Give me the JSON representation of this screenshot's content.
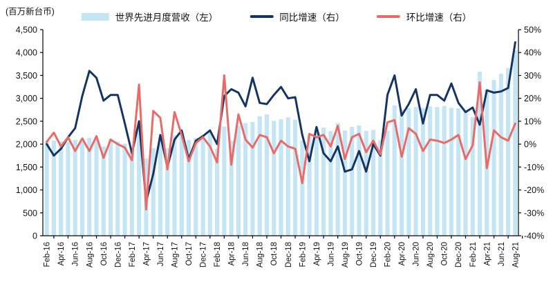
{
  "header": {
    "unit_label": "(百万新台币)"
  },
  "legend": [
    {
      "label": "世界先进月度营收（左）",
      "type": "bar",
      "color": "#c4e6f4"
    },
    {
      "label": "同比增速（右）",
      "type": "line",
      "color": "#143461"
    },
    {
      "label": "环比增速（右）",
      "type": "line",
      "color": "#e96a66"
    }
  ],
  "chart_data": {
    "type": "bar+line combo, dual axis",
    "grid": false,
    "legend_position": "top",
    "categories": [
      "Feb-16",
      "Mar-16",
      "Apr-16",
      "May-16",
      "Jun-16",
      "Jul-16",
      "Aug-16",
      "Sep-16",
      "Oct-16",
      "Nov-16",
      "Dec-16",
      "Jan-17",
      "Feb-17",
      "Mar-17",
      "Apr-17",
      "May-17",
      "Jun-17",
      "Jul-17",
      "Aug-17",
      "Sep-17",
      "Oct-17",
      "Nov-17",
      "Dec-17",
      "Jan-18",
      "Feb-18",
      "Mar-18",
      "Apr-18",
      "May-18",
      "Jun-18",
      "Jul-18",
      "Aug-18",
      "Sep-18",
      "Oct-18",
      "Nov-18",
      "Dec-18",
      "Jan-19",
      "Feb-19",
      "Mar-19",
      "Apr-19",
      "May-19",
      "Jun-19",
      "Jul-19",
      "Aug-19",
      "Sep-19",
      "Oct-19",
      "Nov-19",
      "Dec-19",
      "Jan-20",
      "Feb-20",
      "Mar-20",
      "Apr-20",
      "May-20",
      "Jun-20",
      "Jul-20",
      "Aug-20",
      "Sep-20",
      "Oct-20",
      "Nov-20",
      "Dec-20",
      "Jan-21",
      "Feb-21",
      "Mar-21",
      "Apr-21",
      "May-21",
      "Jun-21",
      "Jul-21",
      "Aug-21"
    ],
    "x_tick_labels": [
      "Feb-16",
      "Apr-16",
      "Jun-16",
      "Aug-16",
      "Oct-16",
      "Dec-16",
      "Feb-17",
      "Apr-17",
      "Jun-17",
      "Aug-17",
      "Oct-17",
      "Dec-17",
      "Feb-18",
      "Apr-18",
      "Jun-18",
      "Aug-18",
      "Oct-18",
      "Dec-18",
      "Feb-19",
      "Apr-19",
      "Jun-19",
      "Aug-19",
      "Oct-19",
      "Dec-19",
      "Feb-20",
      "Apr-20",
      "Jun-20",
      "Aug-20",
      "Oct-20",
      "Dec-20",
      "Feb-21",
      "Apr-21",
      "Jun-21",
      "Aug-21"
    ],
    "left_axis": {
      "min": 0,
      "max": 4500,
      "step": 500,
      "unit": "百万新台币",
      "tick_labels": [
        "0",
        "500",
        "1,000",
        "1,500",
        "2,000",
        "2,500",
        "3,000",
        "3,500",
        "4,000",
        "4,500"
      ]
    },
    "right_axis": {
      "min": -40,
      "max": 50,
      "step": 10,
      "suffix": "%",
      "tick_labels": [
        "50%",
        "40%",
        "30%",
        "20%",
        "10%",
        "0%",
        "-10%",
        "-20%",
        "-30%",
        "-40%"
      ]
    },
    "series": [
      {
        "name": "世界先进月度营收（左）",
        "type": "bar",
        "axis": "left",
        "color": "#c4e6f4",
        "values": [
          2060,
          2080,
          2060,
          2050,
          2090,
          2060,
          2140,
          2135,
          1950,
          2110,
          2060,
          2010,
          1860,
          2340,
          1690,
          1915,
          2140,
          1910,
          2190,
          2260,
          2090,
          2135,
          2200,
          2260,
          1900,
          2385,
          2075,
          2400,
          2460,
          2485,
          2610,
          2650,
          2510,
          2545,
          2585,
          2535,
          2080,
          2220,
          2330,
          2360,
          2285,
          2460,
          2300,
          2380,
          2410,
          2290,
          2310,
          2085,
          2290,
          2845,
          2760,
          2790,
          2810,
          2790,
          2825,
          2810,
          2835,
          2795,
          2785,
          2740,
          2590,
          3580,
          3200,
          3400,
          3540,
          3660,
          4050
        ]
      },
      {
        "name": "同比增速（右）",
        "type": "line",
        "axis": "right",
        "color": "#143461",
        "values": [
          0,
          -5,
          -2,
          3,
          7,
          21,
          32,
          29,
          19,
          21.5,
          21.5,
          9,
          -4,
          10,
          -25,
          -13,
          4,
          -10,
          2,
          6,
          -6.5,
          1.5,
          3.5,
          6,
          0,
          21,
          24,
          22.5,
          16.5,
          29,
          18,
          17.5,
          21.5,
          25,
          20,
          20.5,
          4,
          -7.5,
          7.5,
          -4,
          -7.5,
          -1,
          -12,
          -11,
          -3,
          -12,
          0,
          -5,
          21.5,
          30,
          12.5,
          17.5,
          24,
          9,
          21.5,
          21.5,
          19,
          26.5,
          18,
          14,
          16,
          8.5,
          23.5,
          22.5,
          23,
          24.5,
          44.5
        ]
      },
      {
        "name": "环比增速（右）",
        "type": "line",
        "axis": "right",
        "color": "#e96a66",
        "values": [
          1,
          5,
          -1,
          3,
          -3,
          2.5,
          -3,
          3.5,
          -6,
          2,
          0,
          -1.5,
          -7,
          26,
          -28.5,
          14.5,
          11.5,
          -11,
          14,
          4,
          -7.5,
          0.5,
          3,
          -1,
          -8,
          30,
          -9,
          13,
          2,
          -1.5,
          4,
          3,
          -4,
          1.5,
          -1,
          -2,
          -17,
          4.5,
          3,
          4,
          -1,
          8,
          -6.5,
          3,
          4.5,
          -3.5,
          1.5,
          -4.5,
          9.5,
          10.5,
          -5.5,
          7,
          4.5,
          -3,
          2,
          1.5,
          0.5,
          2,
          4,
          -6.5,
          -0.5,
          27,
          -10.5,
          6,
          3,
          1.5,
          9
        ]
      }
    ]
  }
}
